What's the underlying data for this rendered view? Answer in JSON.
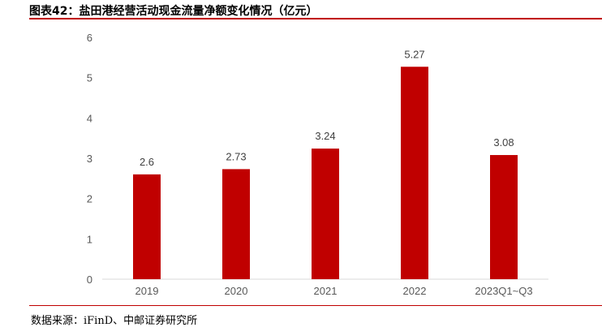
{
  "header": {
    "title": "图表42：盐田港经营活动现金流量净额变化情况（亿元）"
  },
  "footer": {
    "source": "数据来源：iFinD、中邮证券研究所"
  },
  "colors": {
    "bar": "#c00000",
    "accent": "#c00000",
    "axis": "#d9d9d9",
    "text": "#595959"
  },
  "chart_data": {
    "type": "bar",
    "title": "",
    "xlabel": "",
    "ylabel": "",
    "categories": [
      "2019",
      "2020",
      "2021",
      "2022",
      "2023Q1~Q3"
    ],
    "values": [
      2.6,
      2.73,
      3.24,
      5.27,
      3.08
    ],
    "data_labels": [
      "2.6",
      "2.73",
      "3.24",
      "5.27",
      "3.08"
    ],
    "ylim": [
      0,
      6
    ],
    "yticks": [
      "0",
      "1",
      "2",
      "3",
      "4",
      "5",
      "6"
    ],
    "grid": false,
    "legend": "none"
  }
}
